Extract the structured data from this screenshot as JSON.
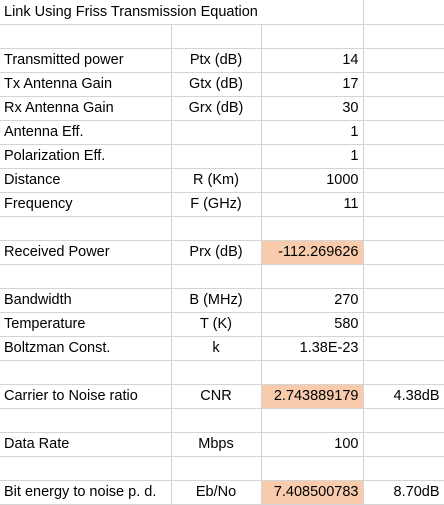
{
  "title": "Link Using Friss Transmission Equation",
  "highlight_color": "#f8cbad",
  "grid_color": "#d4d4d4",
  "rows": [
    {
      "label": "",
      "unit": "",
      "value": "",
      "extra": "",
      "highlight": false
    },
    {
      "label": "Transmitted power",
      "unit": "Ptx (dB)",
      "value": "14",
      "extra": "",
      "highlight": false
    },
    {
      "label": "Tx Antenna Gain",
      "unit": "Gtx (dB)",
      "value": "17",
      "extra": "",
      "highlight": false
    },
    {
      "label": "Rx Antenna Gain",
      "unit": "Grx (dB)",
      "value": "30",
      "extra": "",
      "highlight": false
    },
    {
      "label": "Antenna Eff.",
      "unit": "",
      "value": "1",
      "extra": "",
      "highlight": false
    },
    {
      "label": "Polarization Eff.",
      "unit": "",
      "value": "1",
      "extra": "",
      "highlight": false
    },
    {
      "label": "Distance",
      "unit": "R (Km)",
      "value": "1000",
      "extra": "",
      "highlight": false
    },
    {
      "label": "Frequency",
      "unit": "F (GHz)",
      "value": "11",
      "extra": "",
      "highlight": false
    },
    {
      "label": "",
      "unit": "",
      "value": "",
      "extra": "",
      "highlight": false
    },
    {
      "label": "Received Power",
      "unit": "Prx (dB)",
      "value": "-112.269626",
      "extra": "",
      "highlight": true
    },
    {
      "label": "",
      "unit": "",
      "value": "",
      "extra": "",
      "highlight": false
    },
    {
      "label": "Bandwidth",
      "unit": "B (MHz)",
      "value": "270",
      "extra": "",
      "highlight": false
    },
    {
      "label": "Temperature",
      "unit": "T (K)",
      "value": "580",
      "extra": "",
      "highlight": false
    },
    {
      "label": "Boltzman Const.",
      "unit": "k",
      "value": "1.38E-23",
      "extra": "",
      "highlight": false
    },
    {
      "label": "",
      "unit": "",
      "value": "",
      "extra": "",
      "highlight": false
    },
    {
      "label": "Carrier to Noise ratio",
      "unit": "CNR",
      "value": "2.743889179",
      "extra": "4.38dB",
      "highlight": true
    },
    {
      "label": "",
      "unit": "",
      "value": "",
      "extra": "",
      "highlight": false
    },
    {
      "label": "Data Rate",
      "unit": "Mbps",
      "value": "100",
      "extra": "",
      "highlight": false
    },
    {
      "label": "",
      "unit": "",
      "value": "",
      "extra": "",
      "highlight": false
    },
    {
      "label": "Bit energy to noise p. d.",
      "unit": "Eb/No",
      "value": "7.408500783",
      "extra": "8.70dB",
      "highlight": true
    }
  ]
}
